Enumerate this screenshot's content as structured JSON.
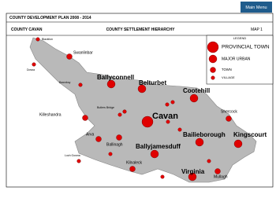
{
  "button": "Main Menu",
  "header": {
    "title": "COUNTY DEVELOPMENT PLAN 2008 - 2014",
    "county": "COUNTY CAVAN",
    "subtitle": "COUNTY SETTLEMENT HIERARCHY",
    "map_id": "MAP 1"
  },
  "legend": {
    "title": "LEGEND",
    "items": [
      "PROVINCIAL TOWN",
      "MAJOR URBAN",
      "TOWN",
      "VILLAGE"
    ]
  },
  "places": [
    "Blacklion",
    "Dowra",
    "Swanlinbar",
    "Ballyconnell",
    "Belturbet",
    "Bawnboy",
    "Cootehill",
    "Butlers Bridge",
    "Killeshandra",
    "Cavan",
    "Shercock",
    "Arva",
    "Ballinagh",
    "Bailieborough",
    "Kingscourt",
    "Ballyjamesduff",
    "Loch Gowna",
    "Kilnaleck",
    "Virginia",
    "Mullagh"
  ]
}
